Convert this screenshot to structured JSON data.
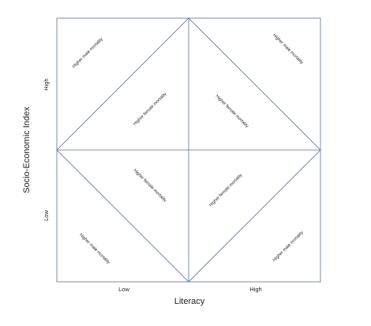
{
  "diagram": {
    "x_axis": {
      "title": "Literacy",
      "ticks": [
        "Low",
        "High"
      ]
    },
    "y_axis": {
      "title": "Socio-Economic Index",
      "ticks": [
        "High",
        "Low"
      ]
    },
    "regions": {
      "top_left_corner": "Higher male mortality",
      "top_left_inner": "Higher female mortality",
      "top_right_inner": "Higher female mortality",
      "top_right_corner": "Higher male mortality",
      "bottom_left_inner": "Higher female mortality",
      "bottom_right_inner": "Higher female mortality",
      "bottom_left_corner": "Higher male mortality",
      "bottom_right_corner": "Higher male mortality"
    },
    "line_color": "#5a6fa8"
  }
}
